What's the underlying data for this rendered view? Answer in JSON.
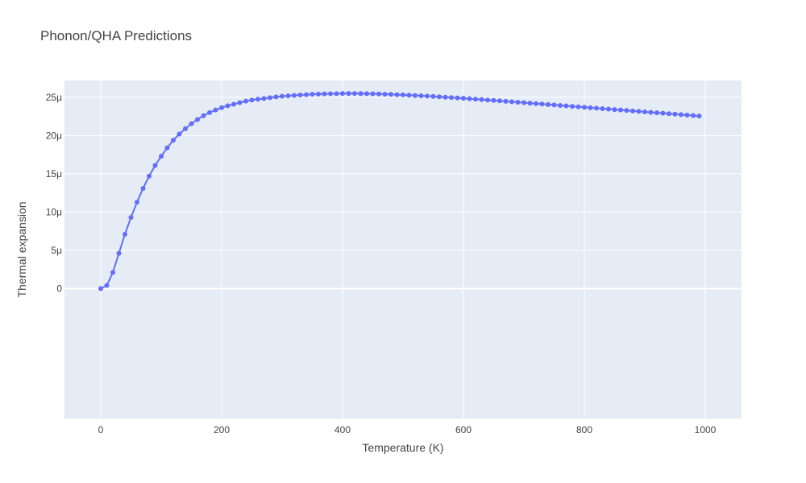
{
  "chart_data": {
    "type": "line",
    "title": "Phonon/QHA Predictions",
    "xlabel": "Temperature (K)",
    "ylabel": "Thermal expansion",
    "xlim": [
      -60,
      1060
    ],
    "ylim": [
      -1.7e-05,
      2.72e-05
    ],
    "xticks": [
      0,
      200,
      400,
      600,
      800,
      1000
    ],
    "xtick_labels": [
      "0",
      "200",
      "400",
      "600",
      "800",
      "1000"
    ],
    "yticks": [
      0,
      5e-06,
      1e-05,
      1.5e-05,
      2e-05,
      2.5e-05
    ],
    "ytick_labels": [
      "0",
      "5μ",
      "10μ",
      "15μ",
      "20μ",
      "25μ"
    ],
    "grid": true,
    "legend": false,
    "colors": {
      "line": "#636efa",
      "plot_bg": "#e5ecf6",
      "grid": "#ffffff"
    },
    "series": [
      {
        "x": [
          0,
          10,
          20,
          30,
          40,
          50,
          60,
          70,
          80,
          90,
          100,
          110,
          120,
          130,
          140,
          150,
          160,
          170,
          180,
          190,
          200,
          210,
          220,
          230,
          240,
          250,
          260,
          270,
          280,
          290,
          300,
          310,
          320,
          330,
          340,
          350,
          360,
          370,
          380,
          390,
          400,
          410,
          420,
          430,
          440,
          450,
          460,
          470,
          480,
          490,
          500,
          510,
          520,
          530,
          540,
          550,
          560,
          570,
          580,
          590,
          600,
          610,
          620,
          630,
          640,
          650,
          660,
          670,
          680,
          690,
          700,
          710,
          720,
          730,
          740,
          750,
          760,
          770,
          780,
          790,
          800,
          810,
          820,
          830,
          840,
          850,
          860,
          870,
          880,
          890,
          900,
          910,
          920,
          930,
          940,
          950,
          960,
          970,
          980,
          990
        ],
        "y": [
          0,
          4e-07,
          2.1e-06,
          4.6e-06,
          7.1e-06,
          9.3e-06,
          1.13e-05,
          1.31e-05,
          1.47e-05,
          1.61e-05,
          1.73e-05,
          1.84e-05,
          1.94e-05,
          2.02e-05,
          2.09e-05,
          2.155e-05,
          2.21e-05,
          2.26e-05,
          2.3e-05,
          2.335e-05,
          2.365e-05,
          2.39e-05,
          2.41e-05,
          2.43e-05,
          2.45e-05,
          2.465e-05,
          2.475e-05,
          2.485e-05,
          2.495e-05,
          2.505e-05,
          2.515e-05,
          2.52e-05,
          2.525e-05,
          2.53e-05,
          2.535e-05,
          2.54e-05,
          2.542e-05,
          2.545e-05,
          2.547e-05,
          2.548e-05,
          2.55e-05,
          2.55e-05,
          2.55e-05,
          2.549e-05,
          2.548e-05,
          2.546e-05,
          2.544e-05,
          2.541e-05,
          2.538e-05,
          2.535e-05,
          2.532e-05,
          2.528e-05,
          2.524e-05,
          2.52e-05,
          2.516e-05,
          2.512e-05,
          2.507e-05,
          2.502e-05,
          2.497e-05,
          2.492e-05,
          2.487e-05,
          2.482e-05,
          2.476e-05,
          2.471e-05,
          2.465e-05,
          2.46e-05,
          2.454e-05,
          2.448e-05,
          2.442e-05,
          2.436e-05,
          2.43e-05,
          2.424e-05,
          2.418e-05,
          2.412e-05,
          2.406e-05,
          2.4e-05,
          2.394e-05,
          2.388e-05,
          2.382e-05,
          2.376e-05,
          2.37e-05,
          2.364e-05,
          2.358e-05,
          2.352e-05,
          2.346e-05,
          2.34e-05,
          2.334e-05,
          2.328e-05,
          2.322e-05,
          2.316e-05,
          2.31e-05,
          2.304e-05,
          2.298e-05,
          2.292e-05,
          2.286e-05,
          2.28e-05,
          2.274e-05,
          2.268e-05,
          2.262e-05,
          2.256e-05
        ]
      }
    ]
  }
}
